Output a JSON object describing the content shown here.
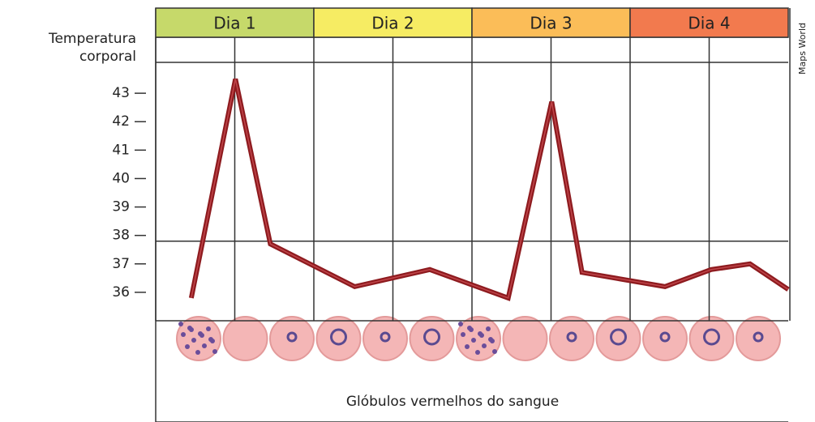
{
  "chart_data": {
    "type": "line",
    "y_label": [
      "Temperatura",
      "corporal"
    ],
    "x_label": "Glóbulos vermelhos do sangue",
    "credit": "Maps World",
    "categories": [
      "Dia 1",
      "Dia 2",
      "Dia 3",
      "Dia 4"
    ],
    "category_colors": [
      "#c6d96a",
      "#f6ec63",
      "#fbbd58",
      "#f27a4e"
    ],
    "x": [
      5.4,
      12.1,
      17.4,
      30.2,
      41.6,
      53.5,
      60.1,
      64.7,
      77.3,
      84.3,
      90.2,
      96
    ],
    "series": [
      {
        "color": "#8e1b1f",
        "values": [
          35.8,
          43.5,
          37.7,
          36.2,
          36.8,
          35.8,
          42.7,
          36.7,
          36.2,
          36.8,
          37.0,
          36.1
        ]
      }
    ],
    "xlim": [
      0,
      96
    ],
    "ylim": [
      35,
      44
    ],
    "yticks": [
      36,
      37,
      38,
      39,
      40,
      41,
      42,
      43
    ],
    "reference_line": 37.8
  }
}
